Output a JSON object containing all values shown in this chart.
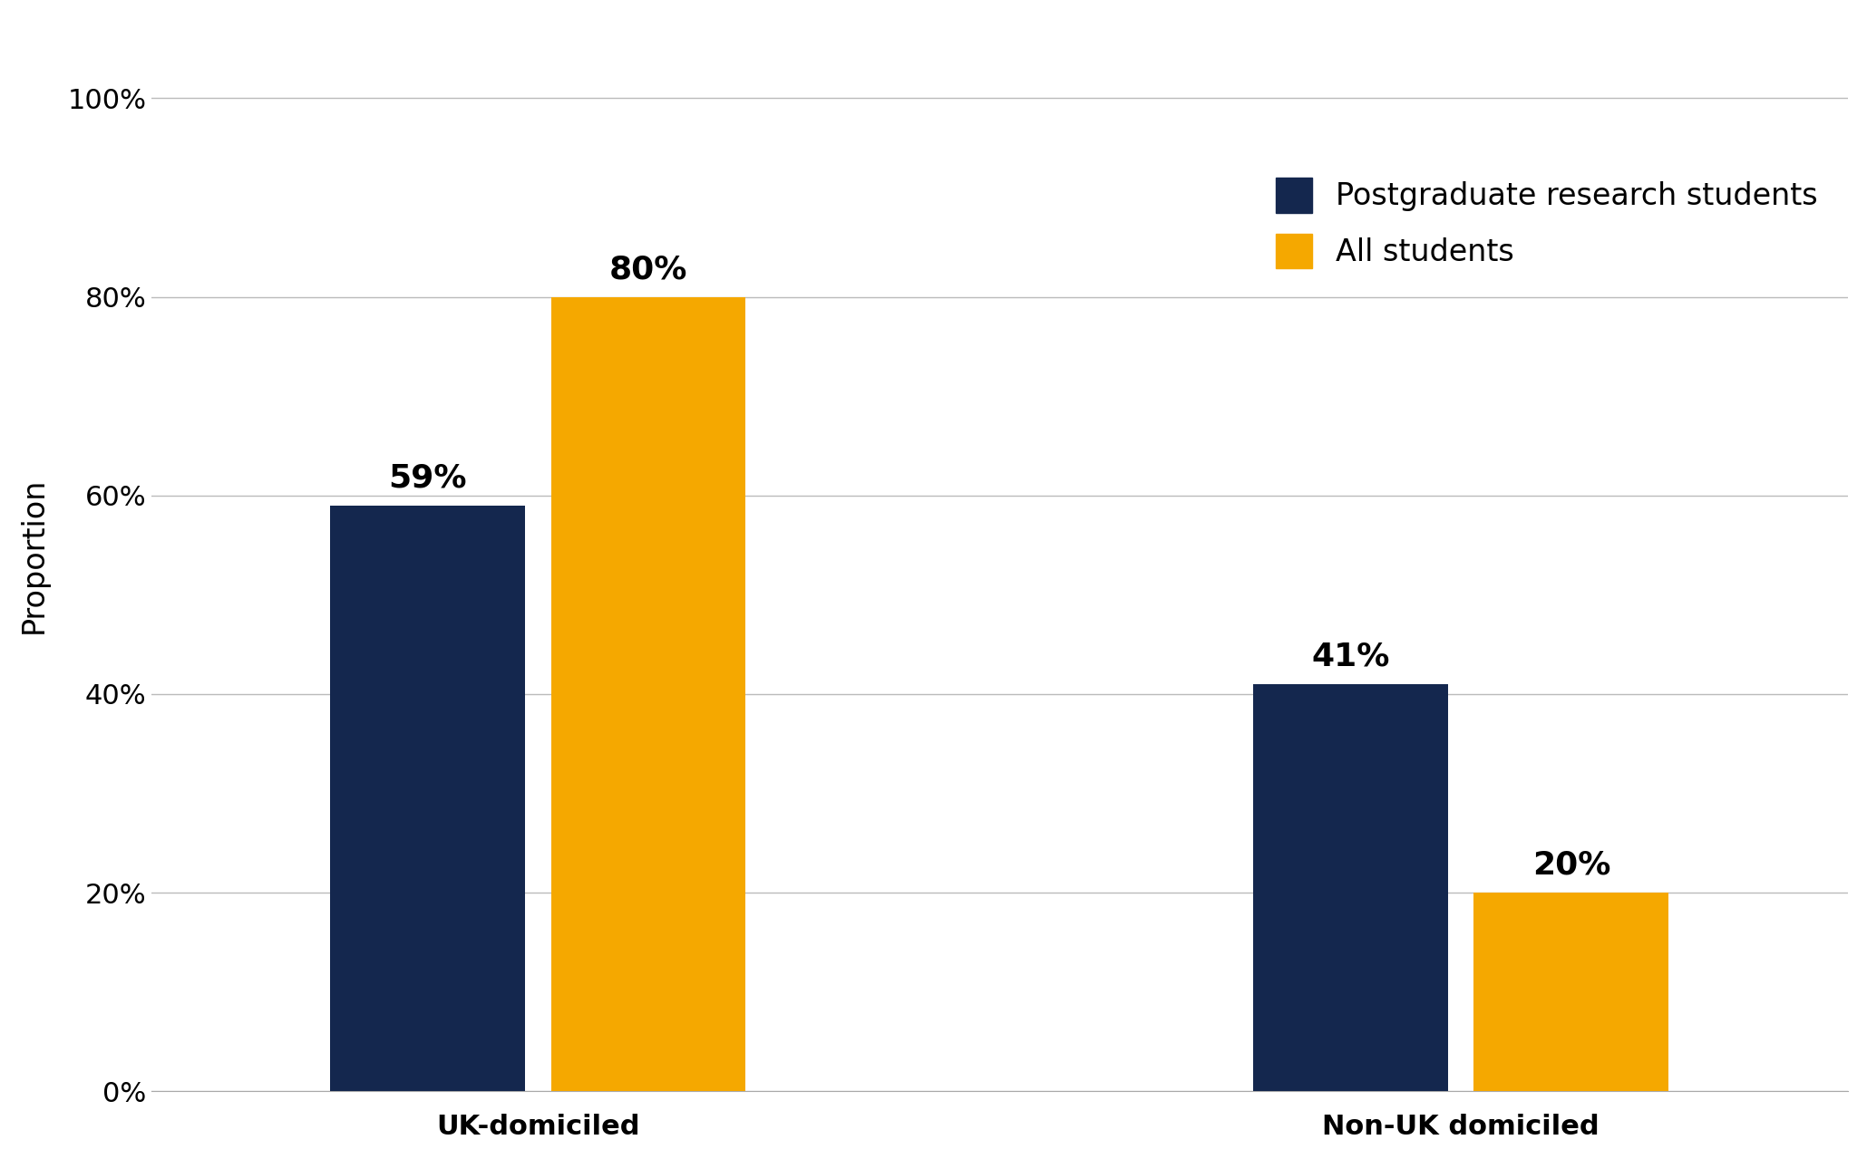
{
  "categories": [
    "UK-domiciled",
    "Non-UK domiciled"
  ],
  "postgrad_values": [
    59,
    41
  ],
  "all_students_values": [
    80,
    20
  ],
  "postgrad_color": "#14274e",
  "all_students_color": "#f5a800",
  "ylabel": "Proportion",
  "yticks": [
    0,
    20,
    40,
    60,
    80,
    100
  ],
  "ytick_labels": [
    "0%",
    "20%",
    "40%",
    "60%",
    "80%",
    "100%"
  ],
  "ylim": [
    0,
    108
  ],
  "legend_labels": [
    "Postgraduate research students",
    "All students"
  ],
  "label_fontsize": 24,
  "tick_fontsize": 22,
  "annotation_fontsize": 26,
  "background_color": "#ffffff",
  "grid_color": "#bbbbbb"
}
